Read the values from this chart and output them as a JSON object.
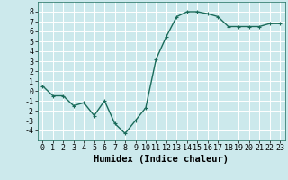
{
  "x": [
    0,
    1,
    2,
    3,
    4,
    5,
    6,
    7,
    8,
    9,
    10,
    11,
    12,
    13,
    14,
    15,
    16,
    17,
    18,
    19,
    20,
    21,
    22,
    23
  ],
  "y": [
    0.5,
    -0.5,
    -0.5,
    -1.5,
    -1.2,
    -2.5,
    -1.0,
    -3.3,
    -4.3,
    -3.0,
    -1.7,
    3.2,
    5.5,
    7.5,
    8.0,
    8.0,
    7.8,
    7.5,
    6.5,
    6.5,
    6.5,
    6.5,
    6.8,
    6.8
  ],
  "line_color": "#1a6b5a",
  "marker": "+",
  "marker_size": 3,
  "bg_color": "#cce9ec",
  "grid_color": "#ffffff",
  "xlabel": "Humidex (Indice chaleur)",
  "xlim": [
    -0.5,
    23.5
  ],
  "ylim": [
    -5,
    9
  ],
  "yticks": [
    -4,
    -3,
    -2,
    -1,
    0,
    1,
    2,
    3,
    4,
    5,
    6,
    7,
    8
  ],
  "xticks": [
    0,
    1,
    2,
    3,
    4,
    5,
    6,
    7,
    8,
    9,
    10,
    11,
    12,
    13,
    14,
    15,
    16,
    17,
    18,
    19,
    20,
    21,
    22,
    23
  ],
  "xlabel_fontsize": 7.5,
  "tick_fontsize": 6,
  "line_width": 1.0
}
